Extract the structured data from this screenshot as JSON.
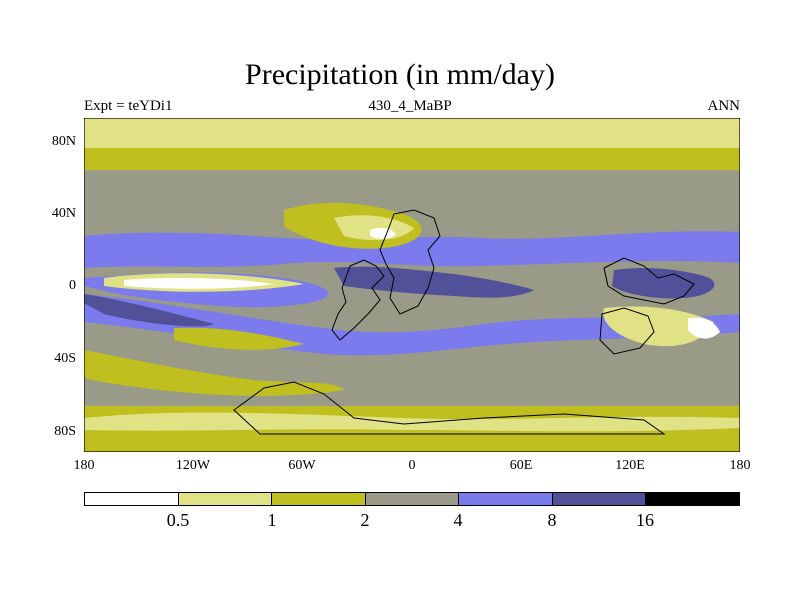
{
  "title": "Precipitation (in mm/day)",
  "subtitle": {
    "left": "Expt = teYDi1",
    "center": "430_4_MaBP",
    "right": "ANN"
  },
  "axes": {
    "lat_labels": [
      "80N",
      "40N",
      "0",
      "40S",
      "80S"
    ],
    "lon_labels": [
      "180",
      "120W",
      "60W",
      "0",
      "60E",
      "120E",
      "180"
    ]
  },
  "legend": {
    "colors": [
      "#ffffff",
      "#e1e185",
      "#bfbf1f",
      "#9a9a88",
      "#7b7bee",
      "#51519a",
      "#000000"
    ],
    "labels": [
      "0.5",
      "1",
      "2",
      "4",
      "8",
      "16"
    ]
  },
  "chart_data": {
    "type": "heatmap",
    "title": "Precipitation (in mm/day)",
    "experiment": "Expt = teYDi1",
    "period": "430_4_MaBP",
    "season": "ANN",
    "units": "mm/day",
    "x_range": [
      -180,
      180
    ],
    "y_range": [
      -90,
      90
    ],
    "contour_levels": [
      0.5,
      1,
      2,
      4,
      8,
      16
    ],
    "colors": [
      "#ffffff",
      "#e1e185",
      "#bfbf1f",
      "#9a9a88",
      "#7b7bee",
      "#51519a",
      "#000000"
    ]
  }
}
